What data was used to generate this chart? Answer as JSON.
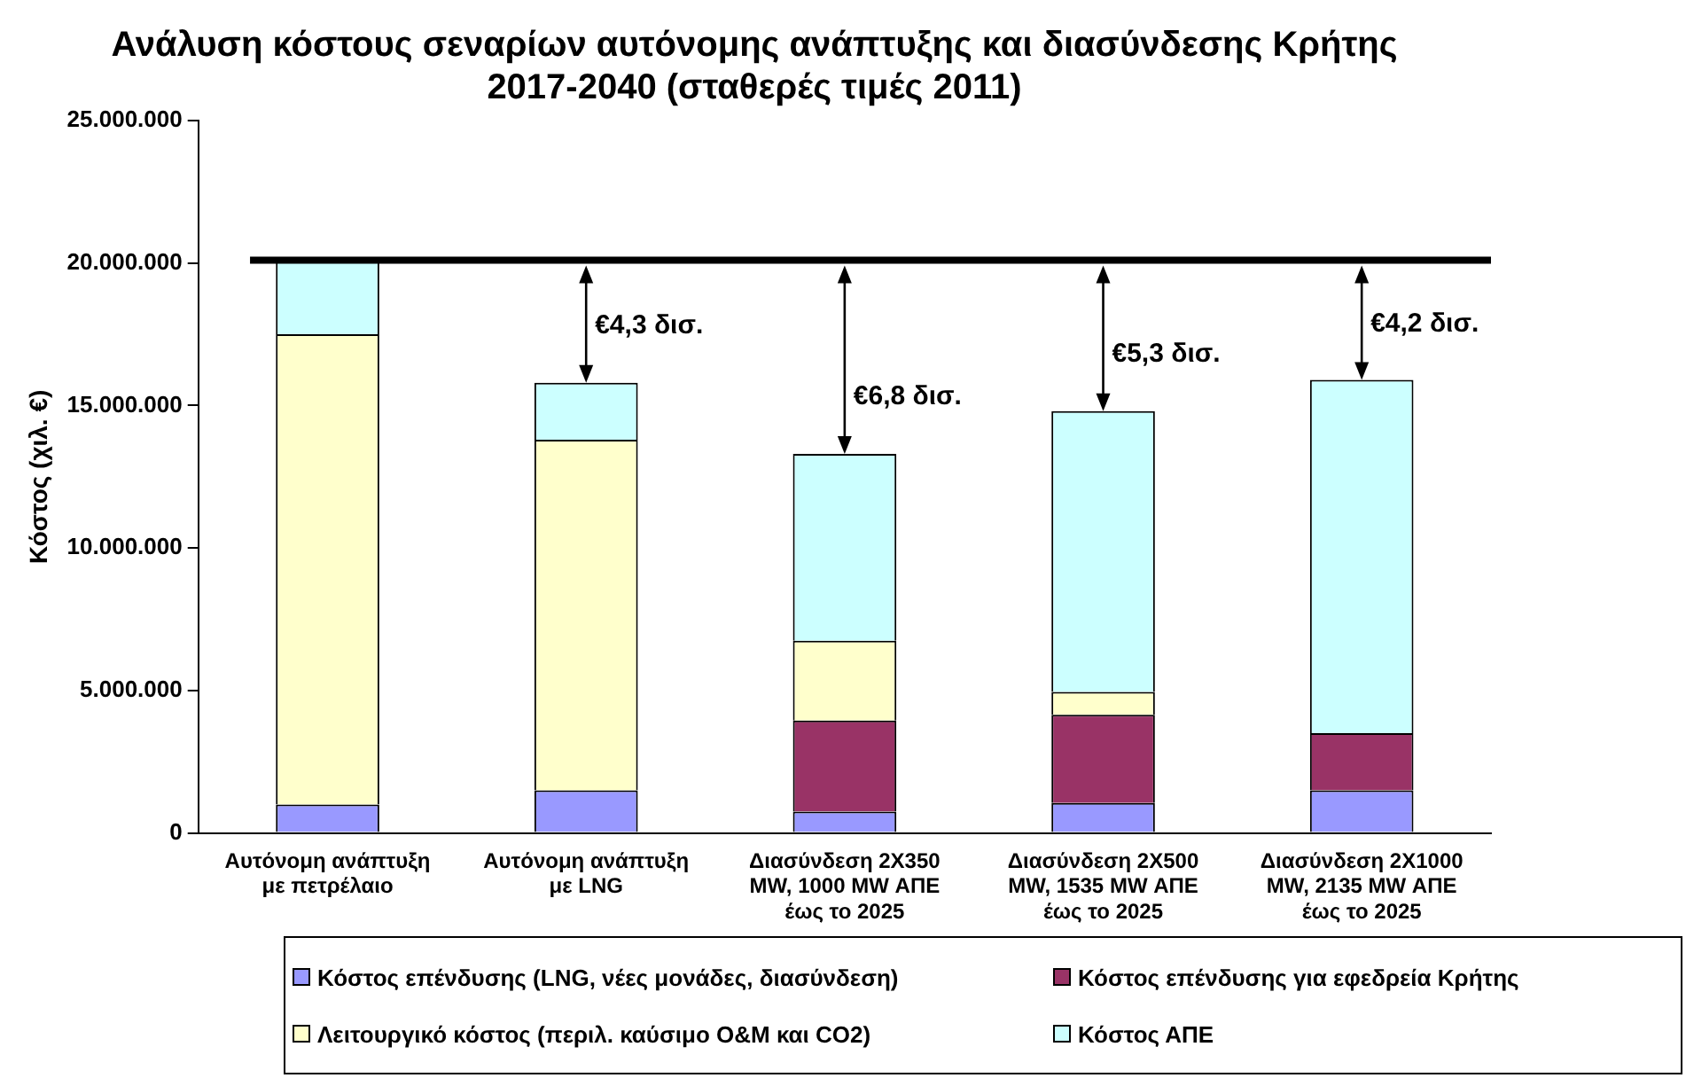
{
  "chart_data": {
    "type": "bar",
    "stacked": true,
    "title": "Ανάλυση κόστους σεναρίων αυτόνομης ανάπτυξης και διασύνδεσης Κρήτης 2017-2040 (σταθερές τιμές 2011)",
    "ylabel": "Κόστος (χιλ. €)",
    "categories": [
      "Αυτόνομη ανάπτυξη με πετρέλαιο",
      "Αυτόνομη ανάπτυξη με LNG",
      "Διασύνδεση 2Χ350 MW, 1000 MW ΑΠΕ έως το 2025",
      "Διασύνδεση 2Χ500 MW, 1535 MW ΑΠΕ έως το 2025",
      "Διασύνδεση 2Χ1000 MW, 2135 MW ΑΠΕ έως το 2025"
    ],
    "series": [
      {
        "name": "Κόστος επένδυσης (LNG, νέες μονάδες, διασύνδεση)",
        "color": "#9999ff",
        "values": [
          1000000,
          1500000,
          750000,
          1050000,
          1500000
        ]
      },
      {
        "name": "Κόστος επένδυσης για εφεδρεία Κρήτης",
        "color": "#993366",
        "values": [
          0,
          0,
          3200000,
          3100000,
          2000000
        ]
      },
      {
        "name": "Λειτουργικό κόστος (περιλ. καύσιμο O&M και CO2)",
        "color": "#ffffcc",
        "values": [
          16500000,
          12300000,
          2800000,
          800000,
          0
        ]
      },
      {
        "name": "Κόστος ΑΠΕ",
        "color": "#ccffff",
        "values": [
          2600000,
          2000000,
          6550000,
          9850000,
          12400000
        ]
      }
    ],
    "ylim": [
      0,
      25000000
    ],
    "yticks": [
      {
        "value": 0,
        "label": "0"
      },
      {
        "value": 5000000,
        "label": "5.000.000"
      },
      {
        "value": 10000000,
        "label": "10.000.000"
      },
      {
        "value": 15000000,
        "label": "15.000.000"
      },
      {
        "value": 20000000,
        "label": "20.000.000"
      },
      {
        "value": 25000000,
        "label": "25.000.000"
      }
    ],
    "ref_lines": [
      {
        "axis": "y",
        "value": 20100000,
        "color": "#000000"
      }
    ],
    "annotations": [
      {
        "text": "€4,3 δισ.",
        "x": "Αυτόνομη ανάπτυξη με LNG",
        "y": 15800000
      },
      {
        "text": "€6,8 δισ.",
        "x": "Διασύνδεση 2Χ350 MW, 1000 MW ΑΠΕ έως το 2025",
        "y": 13300000
      },
      {
        "text": "€5,3 δισ.",
        "x": "Διασύνδεση 2Χ500 MW, 1535 MW ΑΠΕ έως το 2025",
        "y": 14800000
      },
      {
        "text": "€4,2 δισ.",
        "x": "Διασύνδεση 2Χ1000 MW, 2135 MW ΑΠΕ έως το 2025",
        "y": 15900000
      }
    ],
    "grid": false,
    "legend": "bottom"
  }
}
